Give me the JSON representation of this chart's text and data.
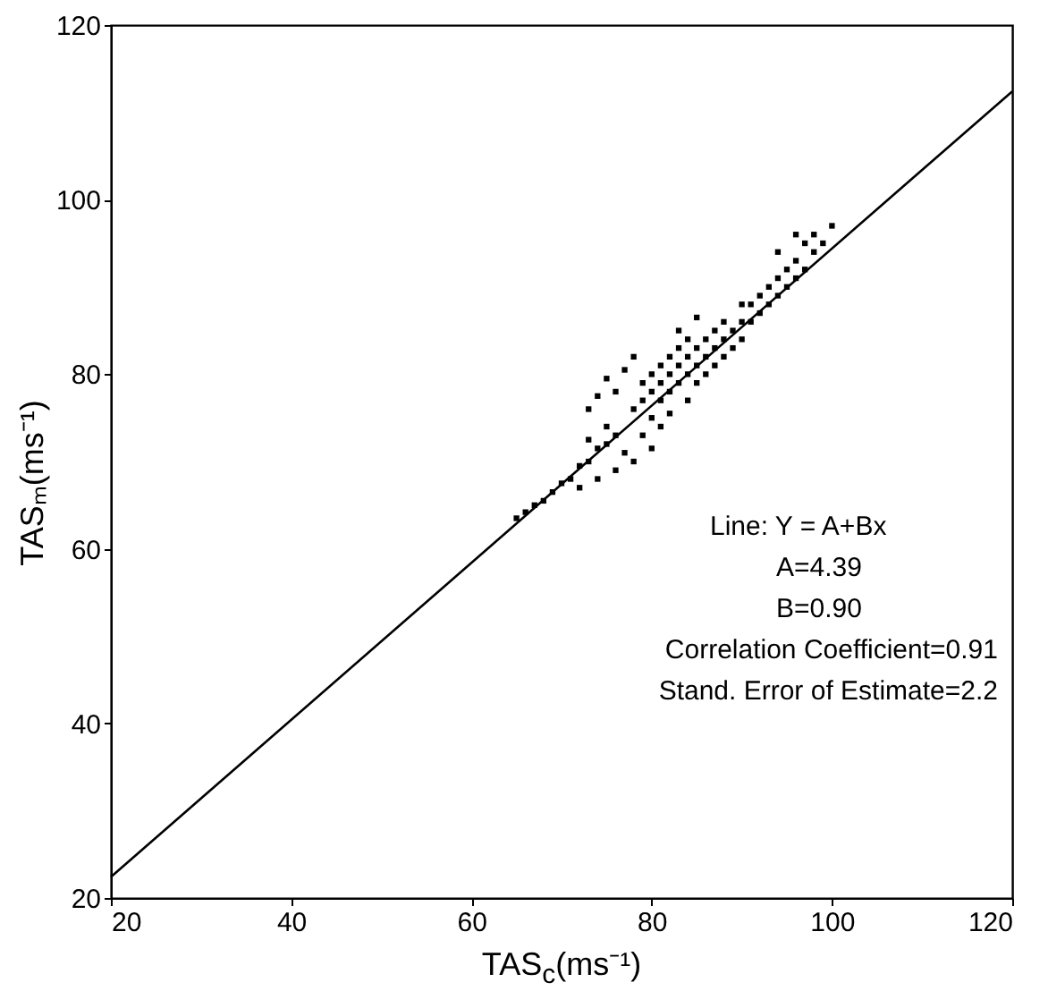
{
  "chart_data": {
    "type": "scatter",
    "xlabel": "TAS$_{c}$(ms⁻¹)",
    "ylabel": "TASₘ(ms⁻¹)",
    "xlim": [
      20,
      120
    ],
    "ylim": [
      20,
      120
    ],
    "xticks": [
      20,
      40,
      60,
      80,
      100,
      120
    ],
    "yticks": [
      20,
      40,
      60,
      80,
      100,
      120
    ],
    "grid": false,
    "annotations": [
      "Line:  Y = A+Bx",
      "A=4.39",
      "B=0.90",
      "Correlation Coefficient=0.91",
      "Stand. Error of Estimate=2.2"
    ],
    "series": [
      {
        "color": "#000000",
        "marker": "square",
        "x": [
          65,
          66,
          67,
          68,
          69,
          70,
          71,
          72,
          73,
          74,
          75,
          76,
          72,
          74,
          76,
          78,
          80,
          77,
          79,
          81,
          73,
          75,
          73,
          74,
          76,
          75,
          77,
          78,
          78,
          79,
          79,
          80,
          80,
          81,
          81,
          81,
          82,
          82,
          82,
          83,
          83,
          83,
          84,
          84,
          84,
          85,
          85,
          85,
          86,
          86,
          86,
          87,
          87,
          87,
          88,
          88,
          88,
          89,
          89,
          90,
          90,
          90,
          80,
          82,
          84,
          83,
          85,
          91,
          91,
          92,
          92,
          93,
          93,
          94,
          94,
          95,
          95,
          96,
          96,
          97,
          97,
          98,
          98,
          99,
          100,
          94,
          96
        ],
        "values": [
          63.5,
          64.2,
          65,
          65.5,
          66.5,
          67.5,
          68,
          69.5,
          70,
          71.5,
          72,
          73,
          67,
          68,
          69,
          70,
          71.5,
          71,
          73,
          74,
          72.5,
          74,
          76,
          77.5,
          78,
          79.5,
          80.5,
          82,
          76,
          77,
          79,
          78,
          80,
          77,
          79,
          81,
          78,
          80,
          82,
          79,
          81,
          83,
          80,
          82,
          84,
          79,
          81,
          83,
          80,
          82,
          84,
          81,
          83,
          85,
          82,
          84,
          86,
          83,
          85,
          84,
          86,
          88,
          75,
          75.5,
          77,
          85,
          86.5,
          86,
          88,
          87,
          89,
          88,
          90,
          89,
          91,
          90,
          92,
          91,
          93,
          92,
          95,
          94,
          96,
          95,
          97,
          94,
          96
        ]
      },
      {
        "type": "line",
        "color": "#000000",
        "x": [
          20,
          120
        ],
        "values": [
          22.4,
          112.4
        ]
      }
    ]
  }
}
